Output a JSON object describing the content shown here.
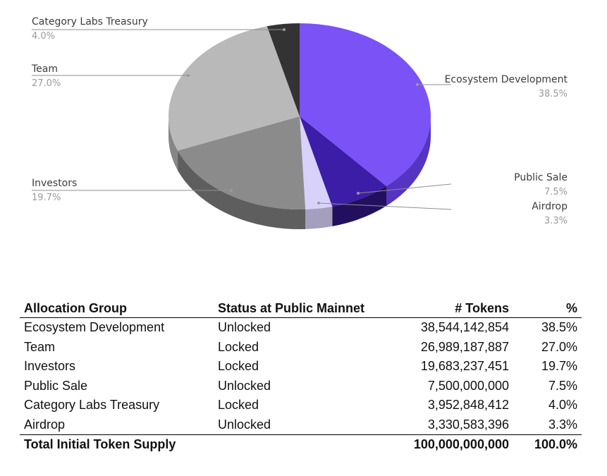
{
  "chart_data": {
    "type": "pie",
    "title": "",
    "slices": [
      {
        "label": "Ecosystem Development",
        "value": 38.5,
        "pct_label": "38.5%",
        "color": "#7b52f5",
        "side_color": "#5534c2"
      },
      {
        "label": "Public Sale",
        "value": 7.5,
        "pct_label": "7.5%",
        "color": "#3b1da8",
        "side_color": "#22105f"
      },
      {
        "label": "Airdrop",
        "value": 3.3,
        "pct_label": "3.3%",
        "color": "#d8d2fb",
        "side_color": "#a39fbd"
      },
      {
        "label": "Investors",
        "value": 19.7,
        "pct_label": "19.7%",
        "color": "#8b8b8b",
        "side_color": "#5e5e5e"
      },
      {
        "label": "Team",
        "value": 27.0,
        "pct_label": "27.0%",
        "color": "#b9b9b9",
        "side_color": "#868686"
      },
      {
        "label": "Category Labs Treasury",
        "value": 4.0,
        "pct_label": "4.0%",
        "color": "#333333",
        "side_color": "#1d1d1d"
      }
    ]
  },
  "table": {
    "headers": [
      "Allocation Group",
      "Status at Public Mainnet",
      "# Tokens",
      "%"
    ],
    "rows": [
      [
        "Ecosystem Development",
        "Unlocked",
        "38,544,142,854",
        "38.5%"
      ],
      [
        "Team",
        "Locked",
        "26,989,187,887",
        "27.0%"
      ],
      [
        "Investors",
        "Locked",
        "19,683,237,451",
        "19.7%"
      ],
      [
        "Public Sale",
        "Unlocked",
        "7,500,000,000",
        "7.5%"
      ],
      [
        "Category Labs Treasury",
        "Locked",
        "3,952,848,412",
        "4.0%"
      ],
      [
        "Airdrop",
        "Unlocked",
        "3,330,583,396",
        "3.3%"
      ]
    ],
    "total": [
      "Total Initial Token Supply",
      "",
      "100,000,000,000",
      "100.0%"
    ]
  }
}
